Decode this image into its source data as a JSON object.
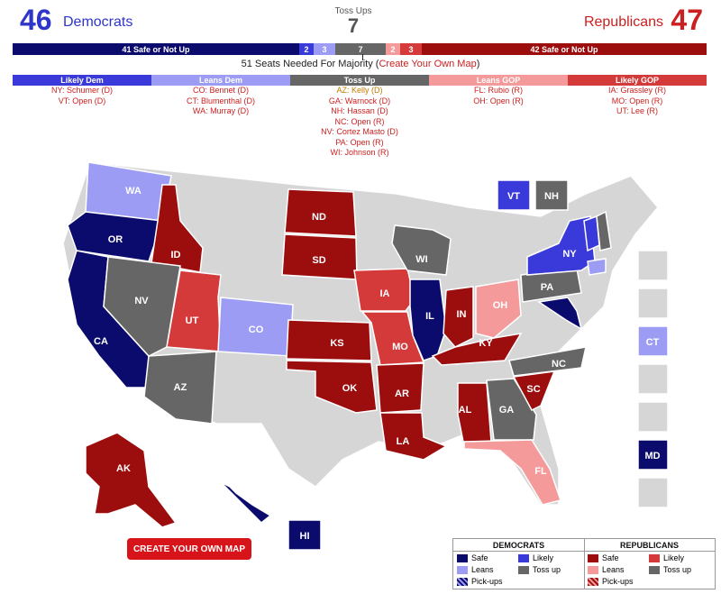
{
  "header": {
    "dem_count": "46",
    "dem_label": "Democrats",
    "rep_count": "47",
    "rep_label": "Republicans",
    "toss_label": "Toss Ups",
    "toss_count": "7"
  },
  "bar": {
    "dem_safe": "41 Safe or Not Up",
    "dem_likely": "2",
    "dem_leans": "3",
    "toss": "7",
    "rep_leans": "2",
    "rep_likely": "3",
    "rep_safe": "42 Safe or Not Up"
  },
  "needed": {
    "text": "51 Seats Needed For Majority (",
    "link": "Create Your Own Map",
    "close": ")"
  },
  "columns": [
    {
      "label": "Likely Dem",
      "items": [
        "NY: Schumer (D)",
        "VT: Open (D)"
      ]
    },
    {
      "label": "Leans Dem",
      "items": [
        "CO: Bennet (D)",
        "CT: Blumenthal (D)",
        "WA: Murray (D)"
      ]
    },
    {
      "label": "Toss Up",
      "items": [
        "AZ: Kelly (D)",
        "GA: Warnock (D)",
        "NH: Hassan (D)",
        "NC: Open (R)",
        "NV: Cortez Masto (D)",
        "PA: Open (R)",
        "WI: Johnson (R)"
      ]
    },
    {
      "label": "Leans GOP",
      "items": [
        "FL: Rubio (R)",
        "OH: Open (R)"
      ]
    },
    {
      "label": "Likely GOP",
      "items": [
        "IA: Grassley (R)",
        "MO: Open (R)",
        "UT: Lee (R)"
      ]
    }
  ],
  "colors": {
    "safe_d": "#0b0b6e",
    "likely_d": "#3a3adb",
    "leans_d": "#9c9cf5",
    "toss": "#666666",
    "leans_r": "#f59a9a",
    "likely_r": "#d43a3a",
    "safe_r": "#9c0d0d",
    "none": "#d6d6d6"
  },
  "map_labels": {
    "WA": "WA",
    "OR": "OR",
    "CA": "CA",
    "ID": "ID",
    "NV": "NV",
    "UT": "UT",
    "AZ": "AZ",
    "CO": "CO",
    "ND": "ND",
    "SD": "SD",
    "KS": "KS",
    "OK": "OK",
    "IA": "IA",
    "MO": "MO",
    "AR": "AR",
    "LA": "LA",
    "WI": "WI",
    "IL": "IL",
    "IN": "IN",
    "OH": "OH",
    "KY": "KY",
    "AL": "AL",
    "GA": "GA",
    "SC": "SC",
    "NC": "NC",
    "FL": "FL",
    "PA": "PA",
    "NY": "NY",
    "AK": "AK",
    "HI": "HI",
    "VT": "VT",
    "NH": "NH",
    "CT": "CT",
    "MD": "MD"
  },
  "button": "CREATE YOUR OWN MAP",
  "legend": {
    "dem_title": "DEMOCRATS",
    "rep_title": "REPUBLICANS",
    "safe": "Safe",
    "likely": "Likely",
    "leans": "Leans",
    "toss": "Toss up",
    "pickups": "Pick-ups"
  }
}
